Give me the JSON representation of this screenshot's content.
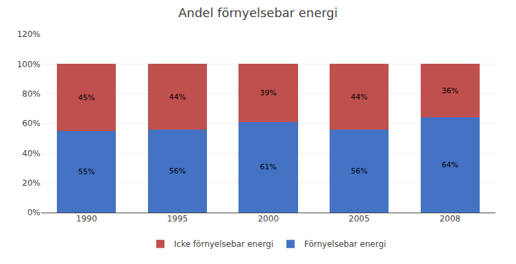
{
  "chart_data": {
    "type": "bar",
    "title": "Andel förnyelsebar energi",
    "categories": [
      "1990",
      "1995",
      "2000",
      "2005",
      "2008"
    ],
    "stacked": true,
    "series": [
      {
        "name": "Förnyelsebar energi",
        "color": "#4472C4",
        "values": [
          55,
          56,
          61,
          56,
          64
        ],
        "value_labels": [
          "55%",
          "56%",
          "61%",
          "56%",
          "64%"
        ]
      },
      {
        "name": "Icke förnyelsebar energi",
        "color": "#C0504D",
        "values": [
          45,
          44,
          39,
          44,
          36
        ],
        "value_labels": [
          "45%",
          "44%",
          "39%",
          "44%",
          "36%"
        ]
      }
    ],
    "data_labels": true,
    "ylim": [
      0,
      120
    ],
    "yticks": [
      {
        "value": 0,
        "label": "0%"
      },
      {
        "value": 20,
        "label": "20%"
      },
      {
        "value": 40,
        "label": "40%"
      },
      {
        "value": 60,
        "label": "60%"
      },
      {
        "value": 80,
        "label": "80%"
      },
      {
        "value": 100,
        "label": "100%"
      },
      {
        "value": 120,
        "label": "120%"
      }
    ],
    "grid": true,
    "legend": "bottom"
  }
}
